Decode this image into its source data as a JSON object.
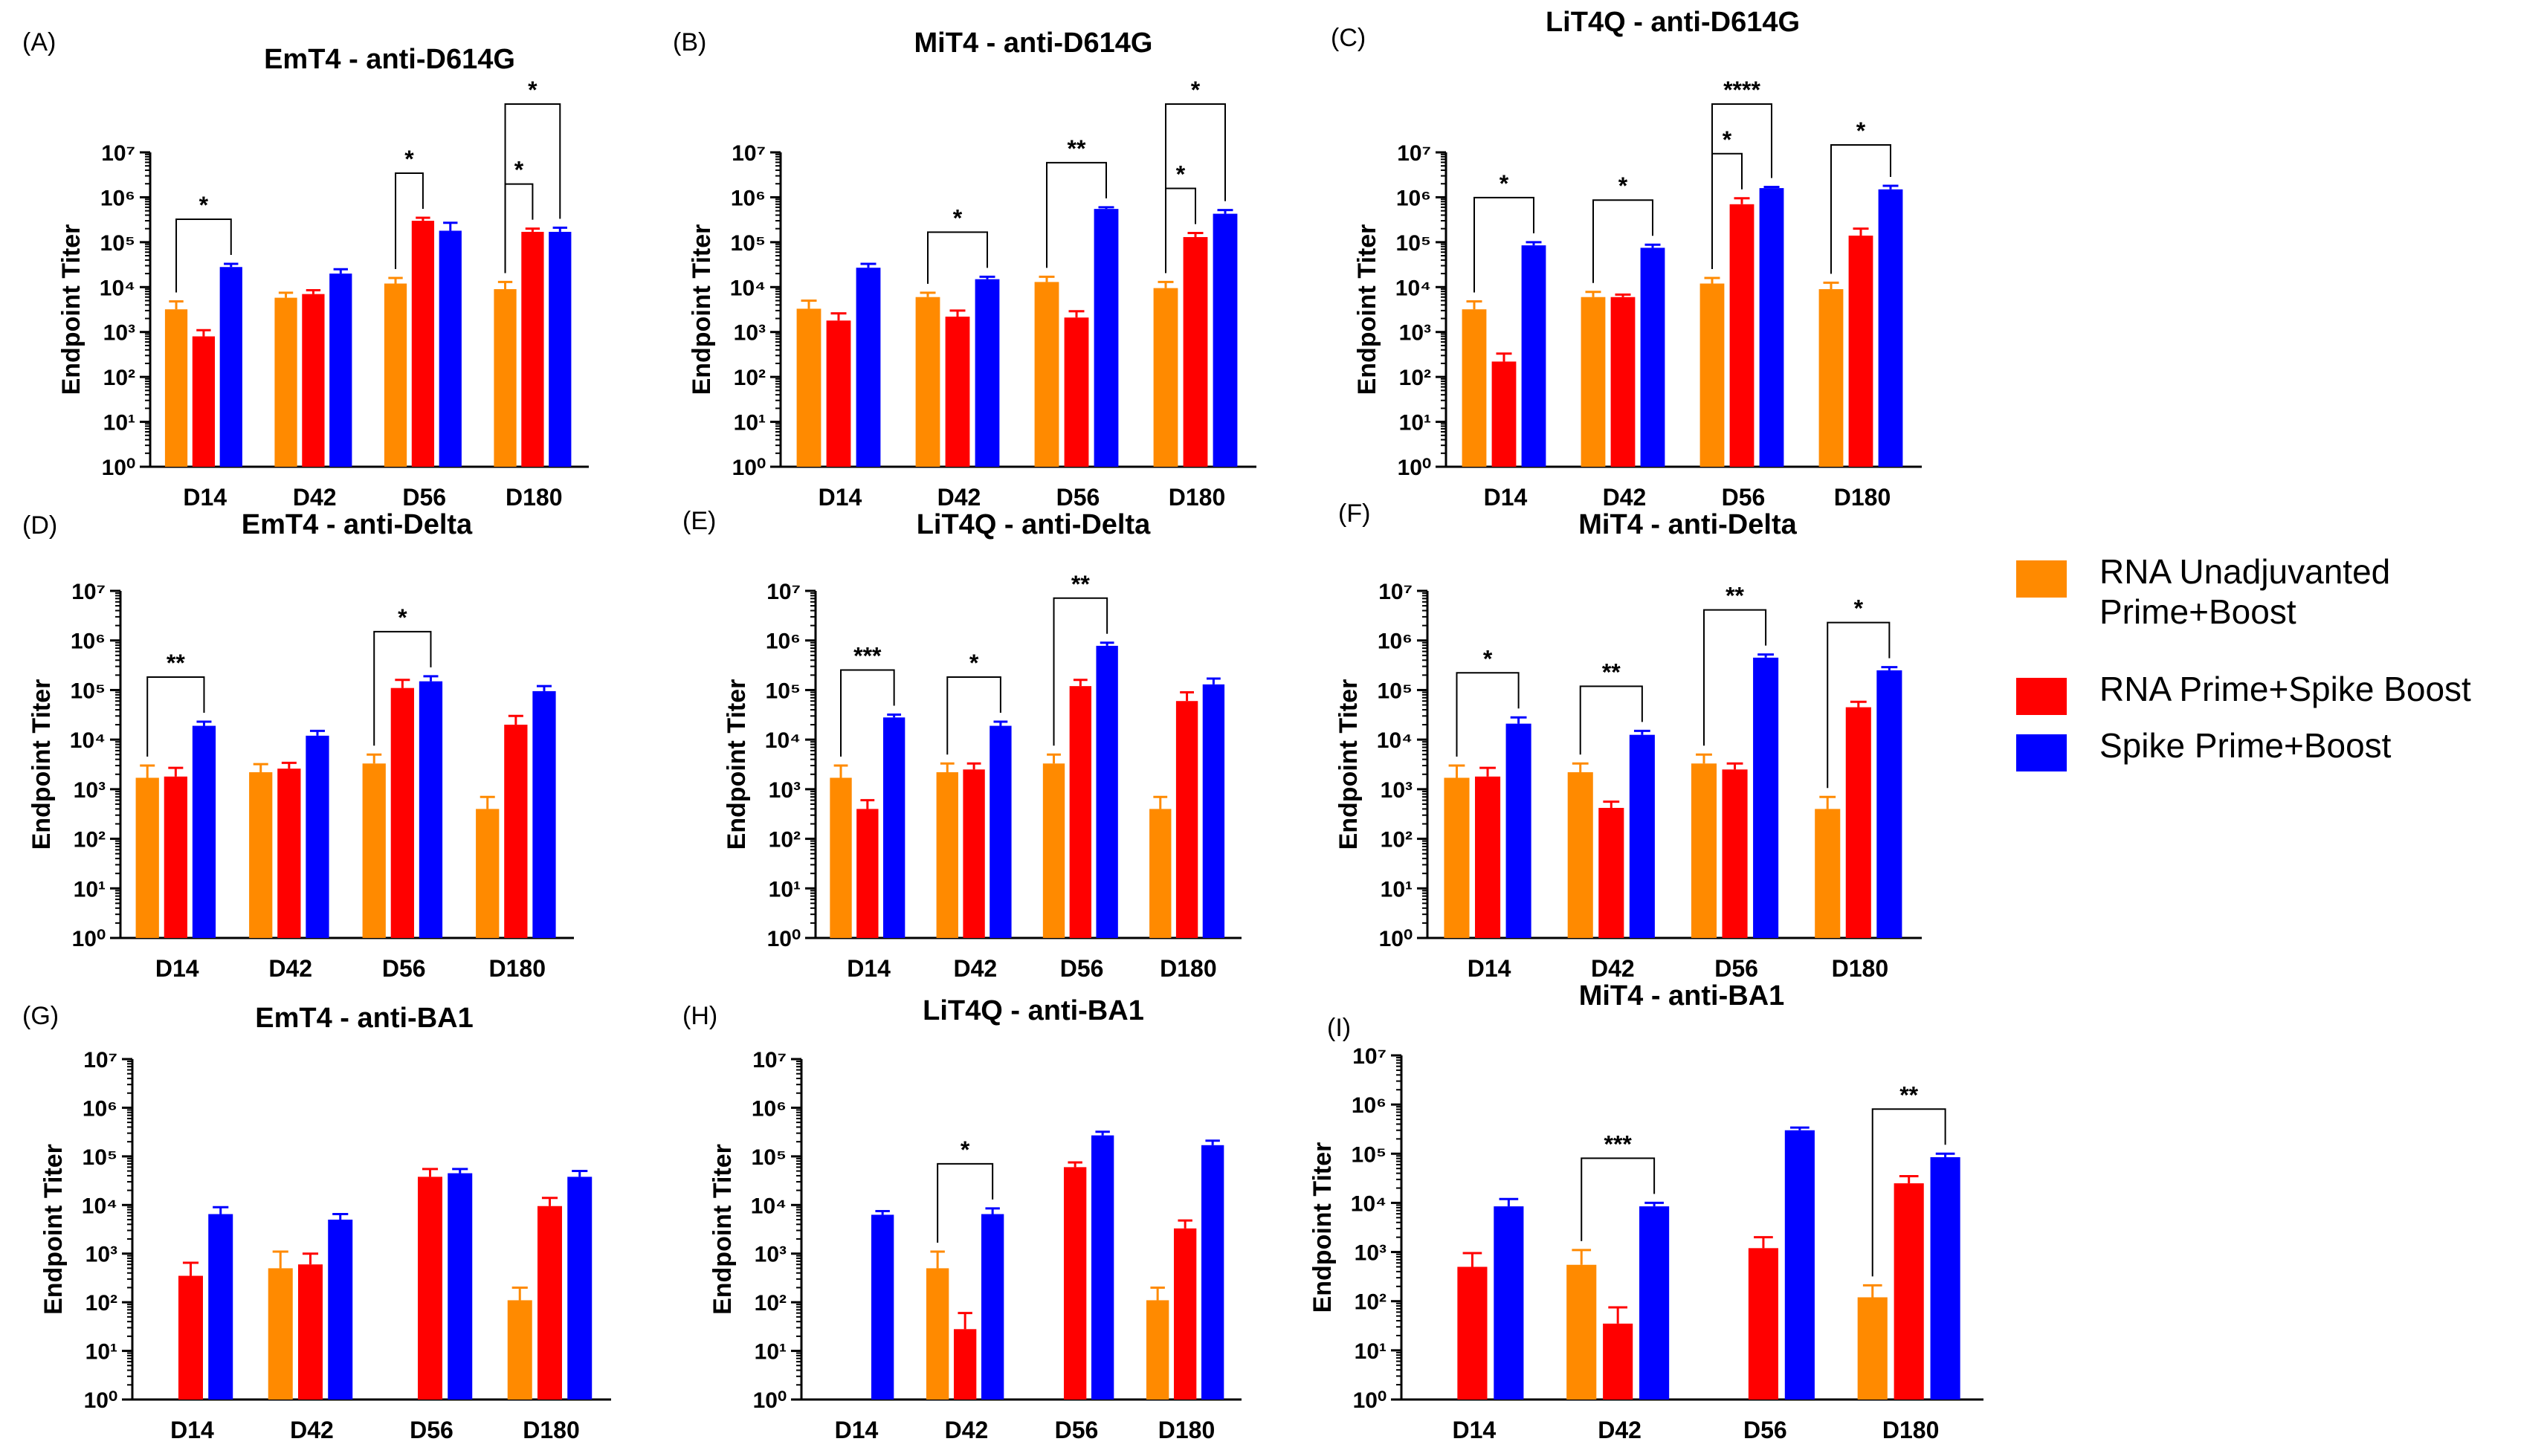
{
  "chart_data": [
    {
      "type": "bar",
      "panel_label": "(A)",
      "title": "EmT4 - anti-D614G",
      "xlabel": "",
      "ylabel": "Endpoint  Titer",
      "yscale": "log10",
      "ylim": [
        1,
        10000000
      ],
      "yticks": [
        "10^0",
        "10^1",
        "10^2",
        "10^3",
        "10^4",
        "10^5",
        "10^6",
        "10^7"
      ],
      "categories": [
        "D14",
        "D42",
        "D56",
        "D180"
      ],
      "series": [
        {
          "name": "RNA Unadjuvanted Prime+Boost",
          "values": [
            3200,
            5800,
            12000,
            9000
          ],
          "errors": [
            4800,
            7500,
            16000,
            13000
          ]
        },
        {
          "name": "RNA Prime+Spike Boost",
          "values": [
            800,
            7000,
            300000,
            170000
          ],
          "errors": [
            1100,
            8500,
            350000,
            200000
          ]
        },
        {
          "name": "Spike Prime+Boost",
          "values": [
            28000,
            20000,
            180000,
            170000
          ],
          "errors": [
            33000,
            25000,
            270000,
            210000
          ]
        }
      ],
      "significance": [
        {
          "from": [
            0,
            0
          ],
          "to": [
            0,
            2
          ],
          "label": "*"
        },
        {
          "from": [
            2,
            0
          ],
          "to": [
            2,
            1
          ],
          "label": "*"
        },
        {
          "from": [
            3,
            0
          ],
          "to": [
            3,
            1
          ],
          "label": "*"
        },
        {
          "from": [
            3,
            0
          ],
          "to": [
            3,
            2
          ],
          "label": "*"
        }
      ]
    },
    {
      "type": "bar",
      "panel_label": "(B)",
      "title": "MiT4 - anti-D614G",
      "xlabel": "",
      "ylabel": "Endpoint  Titer",
      "yscale": "log10",
      "ylim": [
        1,
        10000000
      ],
      "yticks": [
        "10^0",
        "10^1",
        "10^2",
        "10^3",
        "10^4",
        "10^5",
        "10^6",
        "10^7"
      ],
      "categories": [
        "D14",
        "D42",
        "D56",
        "D180"
      ],
      "series": [
        {
          "name": "RNA Unadjuvanted Prime+Boost",
          "values": [
            3300,
            6000,
            13000,
            9500
          ],
          "errors": [
            5000,
            7500,
            17000,
            13000
          ]
        },
        {
          "name": "RNA Prime+Spike Boost",
          "values": [
            1800,
            2200,
            2100,
            130000
          ],
          "errors": [
            2600,
            3000,
            2900,
            160000
          ]
        },
        {
          "name": "Spike Prime+Boost",
          "values": [
            27000,
            15000,
            550000,
            430000
          ],
          "errors": [
            33000,
            17000,
            600000,
            520000
          ]
        }
      ],
      "significance": [
        {
          "from": [
            1,
            0
          ],
          "to": [
            1,
            2
          ],
          "label": "*"
        },
        {
          "from": [
            2,
            0
          ],
          "to": [
            2,
            2
          ],
          "label": "**"
        },
        {
          "from": [
            3,
            0
          ],
          "to": [
            3,
            1
          ],
          "label": "*"
        },
        {
          "from": [
            3,
            0
          ],
          "to": [
            3,
            2
          ],
          "label": "*"
        }
      ]
    },
    {
      "type": "bar",
      "panel_label": "(C)",
      "title": "LiT4Q - anti-D614G",
      "xlabel": "",
      "ylabel": "Endpoint  Titer",
      "yscale": "log10",
      "ylim": [
        1,
        10000000
      ],
      "yticks": [
        "10^0",
        "10^1",
        "10^2",
        "10^3",
        "10^4",
        "10^5",
        "10^6",
        "10^7"
      ],
      "categories": [
        "D14",
        "D42",
        "D56",
        "D180"
      ],
      "series": [
        {
          "name": "RNA Unadjuvanted Prime+Boost",
          "values": [
            3200,
            6000,
            12000,
            9000
          ],
          "errors": [
            4800,
            7800,
            16000,
            12500
          ]
        },
        {
          "name": "RNA Prime+Spike Boost",
          "values": [
            220,
            6000,
            700000,
            140000
          ],
          "errors": [
            330,
            6800,
            950000,
            200000
          ]
        },
        {
          "name": "Spike Prime+Boost",
          "values": [
            85000,
            75000,
            1600000,
            1500000
          ],
          "errors": [
            100000,
            88000,
            1700000,
            1800000
          ]
        }
      ],
      "significance": [
        {
          "from": [
            0,
            0
          ],
          "to": [
            0,
            2
          ],
          "label": "*"
        },
        {
          "from": [
            1,
            0
          ],
          "to": [
            1,
            2
          ],
          "label": "*"
        },
        {
          "from": [
            2,
            0
          ],
          "to": [
            2,
            1
          ],
          "label": "*"
        },
        {
          "from": [
            2,
            0
          ],
          "to": [
            2,
            2
          ],
          "label": "****"
        },
        {
          "from": [
            3,
            0
          ],
          "to": [
            3,
            2
          ],
          "label": "*"
        }
      ]
    },
    {
      "type": "bar",
      "panel_label": "(D)",
      "title": "EmT4 - anti-Delta",
      "xlabel": "",
      "ylabel": "Endpoint  Titer",
      "yscale": "log10",
      "ylim": [
        1,
        10000000
      ],
      "yticks": [
        "10^0",
        "10^1",
        "10^2",
        "10^3",
        "10^4",
        "10^5",
        "10^6",
        "10^7"
      ],
      "categories": [
        "D14",
        "D42",
        "D56",
        "D180"
      ],
      "series": [
        {
          "name": "RNA Unadjuvanted Prime+Boost",
          "values": [
            1700,
            2200,
            3300,
            400
          ],
          "errors": [
            3000,
            3200,
            5000,
            700
          ]
        },
        {
          "name": "RNA Prime+Spike Boost",
          "values": [
            1800,
            2600,
            110000,
            20000
          ],
          "errors": [
            2700,
            3400,
            160000,
            30000
          ]
        },
        {
          "name": "Spike Prime+Boost",
          "values": [
            19000,
            12000,
            150000,
            95000
          ],
          "errors": [
            23000,
            15000,
            190000,
            120000
          ]
        }
      ],
      "significance": [
        {
          "from": [
            0,
            0
          ],
          "to": [
            0,
            2
          ],
          "label": "**"
        },
        {
          "from": [
            2,
            0
          ],
          "to": [
            2,
            2
          ],
          "label": "*"
        }
      ]
    },
    {
      "type": "bar",
      "panel_label": "(E)",
      "title": "LiT4Q - anti-Delta",
      "xlabel": "",
      "ylabel": "Endpoint  Titer",
      "yscale": "log10",
      "ylim": [
        1,
        10000000
      ],
      "yticks": [
        "10^0",
        "10^1",
        "10^2",
        "10^3",
        "10^4",
        "10^5",
        "10^6",
        "10^7"
      ],
      "categories": [
        "D14",
        "D42",
        "D56",
        "D180"
      ],
      "series": [
        {
          "name": "RNA Unadjuvanted Prime+Boost",
          "values": [
            1700,
            2200,
            3300,
            400
          ],
          "errors": [
            3000,
            3300,
            5000,
            700
          ]
        },
        {
          "name": "RNA Prime+Spike Boost",
          "values": [
            400,
            2500,
            120000,
            60000
          ],
          "errors": [
            600,
            3300,
            160000,
            90000
          ]
        },
        {
          "name": "Spike Prime+Boost",
          "values": [
            28000,
            19000,
            780000,
            130000
          ],
          "errors": [
            32000,
            23000,
            900000,
            170000
          ]
        }
      ],
      "significance": [
        {
          "from": [
            0,
            0
          ],
          "to": [
            0,
            2
          ],
          "label": "***"
        },
        {
          "from": [
            1,
            0
          ],
          "to": [
            1,
            2
          ],
          "label": "*"
        },
        {
          "from": [
            2,
            0
          ],
          "to": [
            2,
            2
          ],
          "label": "**"
        }
      ]
    },
    {
      "type": "bar",
      "panel_label": "(F)",
      "title": "MiT4 - anti-Delta",
      "xlabel": "",
      "ylabel": "Endpoint  Titer",
      "yscale": "log10",
      "ylim": [
        1,
        10000000
      ],
      "yticks": [
        "10^0",
        "10^1",
        "10^2",
        "10^3",
        "10^4",
        "10^5",
        "10^6",
        "10^7"
      ],
      "categories": [
        "D14",
        "D42",
        "D56",
        "D180"
      ],
      "series": [
        {
          "name": "RNA Unadjuvanted Prime+Boost",
          "values": [
            1700,
            2200,
            3300,
            400
          ],
          "errors": [
            3000,
            3300,
            5000,
            700
          ]
        },
        {
          "name": "RNA Prime+Spike Boost",
          "values": [
            1800,
            420,
            2500,
            45000
          ],
          "errors": [
            2700,
            560,
            3300,
            58000
          ]
        },
        {
          "name": "Spike Prime+Boost",
          "values": [
            21000,
            12500,
            450000,
            250000
          ],
          "errors": [
            28000,
            15000,
            520000,
            290000
          ]
        }
      ],
      "significance": [
        {
          "from": [
            0,
            0
          ],
          "to": [
            0,
            2
          ],
          "label": "*"
        },
        {
          "from": [
            1,
            0
          ],
          "to": [
            1,
            2
          ],
          "label": "**"
        },
        {
          "from": [
            2,
            0
          ],
          "to": [
            2,
            2
          ],
          "label": "**"
        },
        {
          "from": [
            3,
            0
          ],
          "to": [
            3,
            2
          ],
          "label": "*"
        }
      ]
    },
    {
      "type": "bar",
      "panel_label": "(G)",
      "title": "EmT4 - anti-BA1",
      "xlabel": "",
      "ylabel": "Endpoint  Titer",
      "yscale": "log10",
      "ylim": [
        1,
        10000000
      ],
      "yticks": [
        "10^0",
        "10^1",
        "10^2",
        "10^3",
        "10^4",
        "10^5",
        "10^6",
        "10^7"
      ],
      "categories": [
        "D14",
        "D42",
        "D56",
        "D180"
      ],
      "series": [
        {
          "name": "RNA Unadjuvanted Prime+Boost",
          "values": [
            null,
            500,
            null,
            110
          ],
          "errors": [
            null,
            1100,
            null,
            200
          ]
        },
        {
          "name": "RNA Prime+Spike Boost",
          "values": [
            350,
            600,
            38000,
            9500
          ],
          "errors": [
            650,
            1000,
            55000,
            14000
          ]
        },
        {
          "name": "Spike Prime+Boost",
          "values": [
            6500,
            5000,
            45000,
            38000
          ],
          "errors": [
            9000,
            6500,
            55000,
            50000
          ]
        }
      ],
      "significance": []
    },
    {
      "type": "bar",
      "panel_label": "(H)",
      "title": "LiT4Q - anti-BA1",
      "xlabel": "",
      "ylabel": "Endpoint  Titer",
      "yscale": "log10",
      "ylim": [
        1,
        10000000
      ],
      "yticks": [
        "10^0",
        "10^1",
        "10^2",
        "10^3",
        "10^4",
        "10^5",
        "10^6",
        "10^7"
      ],
      "categories": [
        "D14",
        "D42",
        "D56",
        "D180"
      ],
      "series": [
        {
          "name": "RNA Unadjuvanted Prime+Boost",
          "values": [
            null,
            500,
            null,
            110
          ],
          "errors": [
            null,
            1100,
            null,
            200
          ]
        },
        {
          "name": "RNA Prime+Spike Boost",
          "values": [
            null,
            28,
            60000,
            3300
          ],
          "errors": [
            null,
            60,
            75000,
            4800
          ]
        },
        {
          "name": "Spike Prime+Boost",
          "values": [
            6300,
            6500,
            270000,
            170000
          ],
          "errors": [
            7500,
            8500,
            320000,
            210000
          ]
        }
      ],
      "significance": [
        {
          "from": [
            1,
            0
          ],
          "to": [
            1,
            2
          ],
          "label": "*"
        }
      ]
    },
    {
      "type": "bar",
      "panel_label": "(I)",
      "title": "MiT4 - anti-BA1",
      "xlabel": "",
      "ylabel": "Endpoint  Titer",
      "yscale": "log10",
      "ylim": [
        1,
        10000000
      ],
      "yticks": [
        "10^0",
        "10^1",
        "10^2",
        "10^3",
        "10^4",
        "10^5",
        "10^6",
        "10^7"
      ],
      "categories": [
        "D14",
        "D42",
        "D56",
        "D180"
      ],
      "series": [
        {
          "name": "RNA Unadjuvanted Prime+Boost",
          "values": [
            null,
            550,
            null,
            120
          ],
          "errors": [
            null,
            1100,
            null,
            210
          ]
        },
        {
          "name": "RNA Prime+Spike Boost",
          "values": [
            500,
            35,
            1200,
            25000
          ],
          "errors": [
            950,
            75,
            2000,
            35000
          ]
        },
        {
          "name": "Spike Prime+Boost",
          "values": [
            8500,
            8500,
            300000,
            85000
          ],
          "errors": [
            12000,
            10000,
            340000,
            100000
          ]
        }
      ],
      "significance": [
        {
          "from": [
            1,
            0
          ],
          "to": [
            1,
            2
          ],
          "label": "***"
        },
        {
          "from": [
            3,
            0
          ],
          "to": [
            3,
            2
          ],
          "label": "**"
        }
      ]
    }
  ],
  "legend": {
    "items": [
      {
        "label": "RNA Unadjuvanted Prime+Boost",
        "color": "#FF8A00"
      },
      {
        "label": "RNA Prime+Spike Boost",
        "color": "#FF0000"
      },
      {
        "label": "Spike Prime+Boost",
        "color": "#0000FF"
      }
    ]
  },
  "colors": {
    "series": [
      "#FF8A00",
      "#FF0000",
      "#0000FF"
    ],
    "axis": "#000000"
  }
}
